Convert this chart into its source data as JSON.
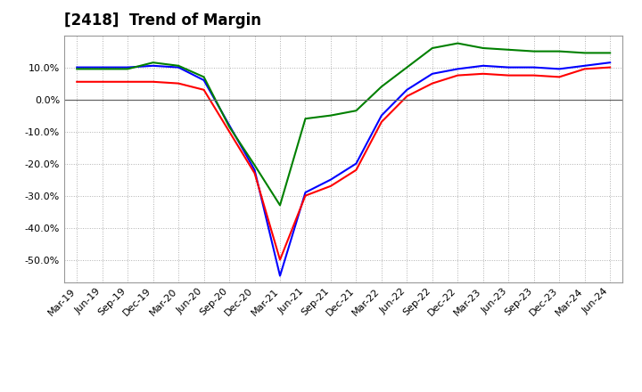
{
  "title": "[2418]  Trend of Margin",
  "x_labels": [
    "Mar-19",
    "Jun-19",
    "Sep-19",
    "Dec-19",
    "Mar-20",
    "Jun-20",
    "Sep-20",
    "Dec-20",
    "Mar-21",
    "Jun-21",
    "Sep-21",
    "Dec-21",
    "Mar-22",
    "Jun-22",
    "Sep-22",
    "Dec-22",
    "Mar-23",
    "Jun-23",
    "Sep-23",
    "Dec-23",
    "Mar-24",
    "Jun-24"
  ],
  "ordinary_income": [
    10.0,
    10.0,
    10.0,
    10.5,
    10.0,
    6.0,
    -8.0,
    -22.0,
    -55.0,
    -29.0,
    -25.0,
    -20.0,
    -5.0,
    3.0,
    8.0,
    9.5,
    10.5,
    10.0,
    10.0,
    9.5,
    10.5,
    11.5
  ],
  "net_income": [
    5.5,
    5.5,
    5.5,
    5.5,
    5.0,
    3.0,
    -10.0,
    -23.0,
    -50.0,
    -30.0,
    -27.0,
    -22.0,
    -7.0,
    1.0,
    5.0,
    7.5,
    8.0,
    7.5,
    7.5,
    7.0,
    9.5,
    10.0
  ],
  "operating_cashflow": [
    9.5,
    9.5,
    9.5,
    11.5,
    10.5,
    7.0,
    -8.5,
    -20.5,
    -33.0,
    -6.0,
    -5.0,
    -3.5,
    4.0,
    10.0,
    16.0,
    17.5,
    16.0,
    15.5,
    15.0,
    15.0,
    14.5,
    14.5
  ],
  "colors": {
    "ordinary_income": "#0000ff",
    "net_income": "#ff0000",
    "operating_cashflow": "#008000"
  },
  "ylim": [
    -57,
    20
  ],
  "yticks": [
    -50.0,
    -40.0,
    -30.0,
    -20.0,
    -10.0,
    0.0,
    10.0
  ],
  "background_color": "#ffffff",
  "plot_bg_color": "#ffffff",
  "grid_color": "#b0b0b0",
  "title_fontsize": 12,
  "legend_fontsize": 9,
  "tick_fontsize": 8
}
